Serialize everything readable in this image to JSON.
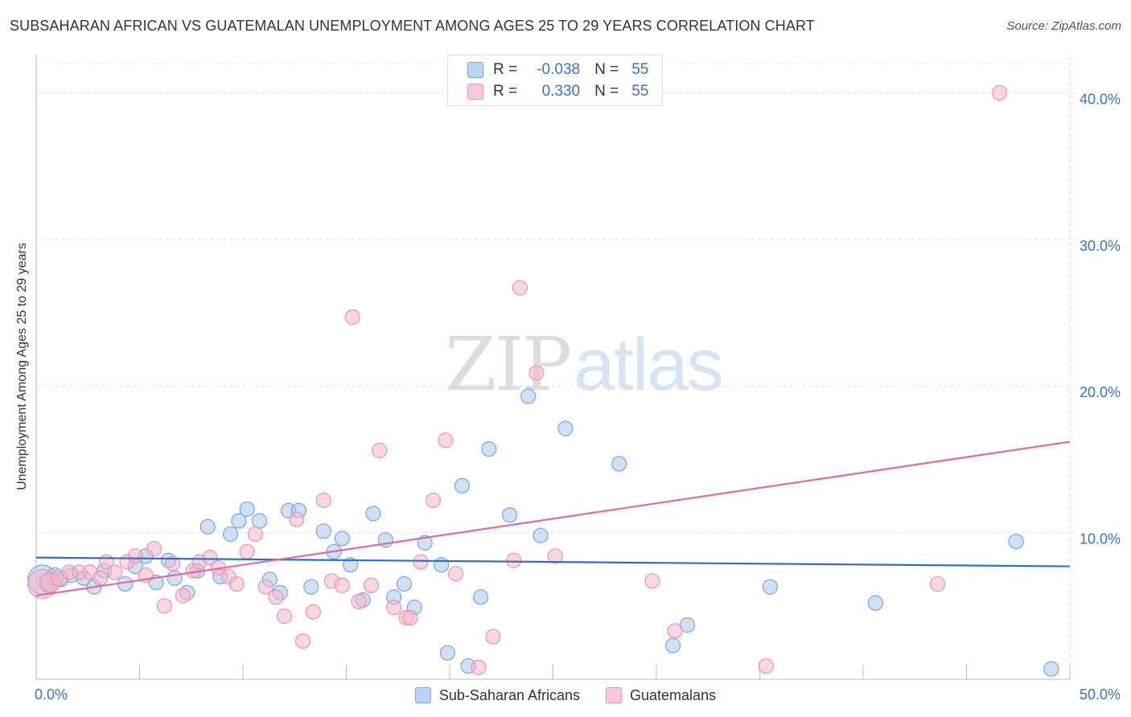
{
  "header": {
    "title": "SUBSAHARAN AFRICAN VS GUATEMALAN UNEMPLOYMENT AMONG AGES 25 TO 29 YEARS CORRELATION CHART",
    "source": "Source: ZipAtlas.com"
  },
  "watermark": {
    "zip": "ZIP",
    "atlas": "atlas"
  },
  "legend_top": {
    "rows": [
      {
        "r_label": "R =",
        "r_value": "-0.038",
        "n_label": "N =",
        "n_value": "55"
      },
      {
        "r_label": "R =",
        "r_value": "0.330",
        "n_label": "N =",
        "n_value": "55"
      }
    ]
  },
  "legend_bottom": {
    "items": [
      "Sub-Saharan Africans",
      "Guatemalans"
    ]
  },
  "colors": {
    "blue_fill": "#a9c8ef",
    "blue_stroke": "#7aa6dc",
    "blue_line": "#2f6fcb",
    "pink_fill": "#f5b7cb",
    "pink_stroke": "#ec93b1",
    "pink_line": "#e5699a",
    "tick_label": "#3b73c4",
    "grid": "#dddddd"
  },
  "chart_data": {
    "type": "scatter",
    "title": "SUBSAHARAN AFRICAN VS GUATEMALAN UNEMPLOYMENT AMONG AGES 25 TO 29 YEARS CORRELATION CHART",
    "xlabel": "",
    "ylabel": "Unemployment Among Ages 25 to 29 years",
    "xlim": [
      0,
      50
    ],
    "ylim": [
      0,
      42
    ],
    "x_tick_labels": [
      "0.0%",
      "50.0%"
    ],
    "y_ticks": [
      10,
      20,
      30,
      40
    ],
    "y_tick_labels": [
      "10.0%",
      "20.0%",
      "30.0%",
      "40.0%"
    ],
    "grid": true,
    "legend_position": "top-center",
    "series": [
      {
        "name": "Sub-Saharan Africans",
        "color": "#a9c8ef",
        "R": -0.038,
        "N": 55,
        "trend": {
          "x": [
            0,
            50
          ],
          "y": [
            8.3,
            7.7
          ]
        },
        "points": [
          {
            "x": 0.3,
            "y": 6.8,
            "s": 18
          },
          {
            "x": 0.6,
            "y": 6.6,
            "s": 12
          },
          {
            "x": 0.9,
            "y": 7.0,
            "s": 11
          },
          {
            "x": 1.2,
            "y": 6.8,
            "s": 9
          },
          {
            "x": 1.7,
            "y": 7.1,
            "s": 9
          },
          {
            "x": 2.3,
            "y": 6.9,
            "s": 9
          },
          {
            "x": 2.8,
            "y": 6.3,
            "s": 9
          },
          {
            "x": 3.3,
            "y": 7.4,
            "s": 9
          },
          {
            "x": 4.3,
            "y": 6.5,
            "s": 9
          },
          {
            "x": 4.8,
            "y": 7.7,
            "s": 9
          },
          {
            "x": 5.3,
            "y": 8.4,
            "s": 9
          },
          {
            "x": 5.8,
            "y": 6.6,
            "s": 9
          },
          {
            "x": 6.4,
            "y": 8.1,
            "s": 9
          },
          {
            "x": 6.7,
            "y": 6.9,
            "s": 9
          },
          {
            "x": 7.3,
            "y": 5.9,
            "s": 9
          },
          {
            "x": 7.8,
            "y": 7.4,
            "s": 9
          },
          {
            "x": 8.3,
            "y": 10.4,
            "s": 9
          },
          {
            "x": 8.9,
            "y": 7.0,
            "s": 9
          },
          {
            "x": 9.4,
            "y": 9.9,
            "s": 9
          },
          {
            "x": 9.8,
            "y": 10.8,
            "s": 9
          },
          {
            "x": 10.2,
            "y": 11.6,
            "s": 9
          },
          {
            "x": 10.8,
            "y": 10.8,
            "s": 9
          },
          {
            "x": 11.3,
            "y": 6.8,
            "s": 9
          },
          {
            "x": 11.8,
            "y": 5.9,
            "s": 9
          },
          {
            "x": 12.2,
            "y": 11.5,
            "s": 9
          },
          {
            "x": 12.7,
            "y": 11.5,
            "s": 9
          },
          {
            "x": 13.3,
            "y": 6.3,
            "s": 9
          },
          {
            "x": 13.9,
            "y": 10.1,
            "s": 9
          },
          {
            "x": 14.4,
            "y": 8.7,
            "s": 9
          },
          {
            "x": 14.8,
            "y": 9.6,
            "s": 9
          },
          {
            "x": 15.2,
            "y": 7.8,
            "s": 9
          },
          {
            "x": 15.8,
            "y": 5.4,
            "s": 9
          },
          {
            "x": 16.3,
            "y": 11.3,
            "s": 9
          },
          {
            "x": 16.9,
            "y": 9.5,
            "s": 9
          },
          {
            "x": 17.3,
            "y": 5.6,
            "s": 9
          },
          {
            "x": 17.8,
            "y": 6.5,
            "s": 9
          },
          {
            "x": 18.3,
            "y": 4.9,
            "s": 9
          },
          {
            "x": 18.8,
            "y": 9.3,
            "s": 9
          },
          {
            "x": 19.6,
            "y": 7.8,
            "s": 9
          },
          {
            "x": 19.9,
            "y": 1.8,
            "s": 9
          },
          {
            "x": 20.6,
            "y": 13.2,
            "s": 9
          },
          {
            "x": 20.9,
            "y": 0.9,
            "s": 9
          },
          {
            "x": 21.5,
            "y": 5.6,
            "s": 9
          },
          {
            "x": 21.9,
            "y": 15.7,
            "s": 9
          },
          {
            "x": 22.9,
            "y": 11.2,
            "s": 9
          },
          {
            "x": 23.8,
            "y": 19.3,
            "s": 9
          },
          {
            "x": 24.4,
            "y": 9.8,
            "s": 9
          },
          {
            "x": 25.6,
            "y": 17.1,
            "s": 9
          },
          {
            "x": 28.2,
            "y": 14.7,
            "s": 9
          },
          {
            "x": 30.8,
            "y": 2.3,
            "s": 9
          },
          {
            "x": 31.5,
            "y": 3.7,
            "s": 9
          },
          {
            "x": 35.5,
            "y": 6.3,
            "s": 9
          },
          {
            "x": 40.6,
            "y": 5.2,
            "s": 9
          },
          {
            "x": 47.4,
            "y": 9.4,
            "s": 9
          },
          {
            "x": 49.1,
            "y": 0.7,
            "s": 9
          }
        ]
      },
      {
        "name": "Guatemalans",
        "color": "#f5b7cb",
        "R": 0.33,
        "N": 55,
        "trend": {
          "x": [
            0,
            50
          ],
          "y": [
            5.7,
            16.2
          ]
        },
        "points": [
          {
            "x": 0.3,
            "y": 6.5,
            "s": 18
          },
          {
            "x": 0.7,
            "y": 6.6,
            "s": 12
          },
          {
            "x": 1.1,
            "y": 6.9,
            "s": 10
          },
          {
            "x": 1.6,
            "y": 7.3,
            "s": 9
          },
          {
            "x": 2.1,
            "y": 7.3,
            "s": 9
          },
          {
            "x": 2.6,
            "y": 7.3,
            "s": 9
          },
          {
            "x": 3.1,
            "y": 6.9,
            "s": 9
          },
          {
            "x": 3.4,
            "y": 8.0,
            "s": 9
          },
          {
            "x": 3.8,
            "y": 7.3,
            "s": 9
          },
          {
            "x": 4.4,
            "y": 8.0,
            "s": 9
          },
          {
            "x": 4.8,
            "y": 8.4,
            "s": 9
          },
          {
            "x": 5.3,
            "y": 7.1,
            "s": 9
          },
          {
            "x": 5.7,
            "y": 8.9,
            "s": 9
          },
          {
            "x": 6.2,
            "y": 5.0,
            "s": 9
          },
          {
            "x": 6.6,
            "y": 7.9,
            "s": 9
          },
          {
            "x": 7.1,
            "y": 5.7,
            "s": 9
          },
          {
            "x": 7.6,
            "y": 7.4,
            "s": 9
          },
          {
            "x": 7.9,
            "y": 8.0,
            "s": 9
          },
          {
            "x": 8.4,
            "y": 8.3,
            "s": 9
          },
          {
            "x": 8.8,
            "y": 7.6,
            "s": 9
          },
          {
            "x": 9.3,
            "y": 7.0,
            "s": 9
          },
          {
            "x": 9.7,
            "y": 6.5,
            "s": 9
          },
          {
            "x": 10.2,
            "y": 8.7,
            "s": 9
          },
          {
            "x": 10.6,
            "y": 9.9,
            "s": 9
          },
          {
            "x": 11.1,
            "y": 6.3,
            "s": 9
          },
          {
            "x": 11.6,
            "y": 5.6,
            "s": 9
          },
          {
            "x": 12.0,
            "y": 4.3,
            "s": 9
          },
          {
            "x": 12.6,
            "y": 10.9,
            "s": 9
          },
          {
            "x": 12.9,
            "y": 2.6,
            "s": 9
          },
          {
            "x": 13.4,
            "y": 4.6,
            "s": 9
          },
          {
            "x": 13.9,
            "y": 12.2,
            "s": 9
          },
          {
            "x": 14.3,
            "y": 6.7,
            "s": 9
          },
          {
            "x": 14.8,
            "y": 6.4,
            "s": 9
          },
          {
            "x": 15.3,
            "y": 24.7,
            "s": 9
          },
          {
            "x": 15.6,
            "y": 5.3,
            "s": 9
          },
          {
            "x": 16.2,
            "y": 6.4,
            "s": 9
          },
          {
            "x": 16.6,
            "y": 15.6,
            "s": 9
          },
          {
            "x": 17.3,
            "y": 4.9,
            "s": 9
          },
          {
            "x": 17.9,
            "y": 4.2,
            "s": 9
          },
          {
            "x": 18.6,
            "y": 8.0,
            "s": 9
          },
          {
            "x": 19.2,
            "y": 12.2,
            "s": 9
          },
          {
            "x": 19.8,
            "y": 16.3,
            "s": 9
          },
          {
            "x": 20.3,
            "y": 7.2,
            "s": 9
          },
          {
            "x": 21.4,
            "y": 0.8,
            "s": 9
          },
          {
            "x": 22.1,
            "y": 2.9,
            "s": 9
          },
          {
            "x": 23.1,
            "y": 8.1,
            "s": 9
          },
          {
            "x": 23.4,
            "y": 26.7,
            "s": 9
          },
          {
            "x": 24.2,
            "y": 20.9,
            "s": 9
          },
          {
            "x": 25.1,
            "y": 8.4,
            "s": 9
          },
          {
            "x": 29.8,
            "y": 6.7,
            "s": 9
          },
          {
            "x": 30.9,
            "y": 3.3,
            "s": 9
          },
          {
            "x": 35.3,
            "y": 0.9,
            "s": 9
          },
          {
            "x": 43.6,
            "y": 6.5,
            "s": 9
          },
          {
            "x": 46.6,
            "y": 40.0,
            "s": 9
          },
          {
            "x": 18.1,
            "y": 4.2,
            "s": 9
          }
        ]
      }
    ]
  }
}
